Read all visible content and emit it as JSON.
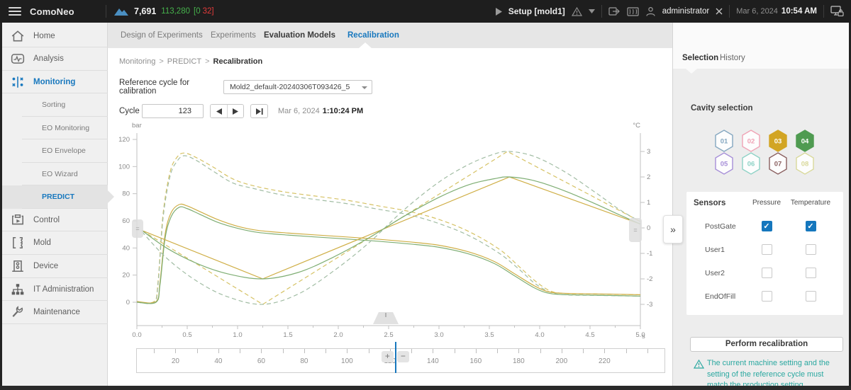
{
  "topbar": {
    "app_name": "ComoNeo",
    "cycle_counter": "7,691",
    "total_counter": "113,280",
    "good_counter": "[0",
    "bad_counter": "32]",
    "mode_label": "Setup [mold1]",
    "user": "administrator",
    "date": "Mar 6, 2024",
    "time": "10:54 AM"
  },
  "sidebar": {
    "items": [
      {
        "id": "home",
        "label": "Home",
        "icon": "home-icon"
      },
      {
        "id": "analysis",
        "label": "Analysis",
        "icon": "analysis-icon"
      },
      {
        "id": "monitoring",
        "label": "Monitoring",
        "icon": "monitoring-icon",
        "active": true
      },
      {
        "id": "sorting",
        "label": "Sorting",
        "sub": true
      },
      {
        "id": "eo-monitoring",
        "label": "EO Monitoring",
        "sub": true
      },
      {
        "id": "eo-envelope",
        "label": "EO Envelope",
        "sub": true
      },
      {
        "id": "eo-wizard",
        "label": "EO Wizard",
        "sub": true
      },
      {
        "id": "predict",
        "label": "PREDICT",
        "sub": true,
        "selected": true
      },
      {
        "id": "control",
        "label": "Control",
        "icon": "control-icon"
      },
      {
        "id": "mold",
        "label": "Mold",
        "icon": "mold-icon"
      },
      {
        "id": "device",
        "label": "Device",
        "icon": "device-icon"
      },
      {
        "id": "it-administration",
        "label": "IT Administration",
        "icon": "it-admin-icon"
      },
      {
        "id": "maintenance",
        "label": "Maintenance",
        "icon": "maintenance-icon"
      }
    ]
  },
  "tabs": {
    "items": [
      {
        "label": "Design of Experiments"
      },
      {
        "label": "Experiments"
      },
      {
        "label": "Evaluation Models",
        "emphasis": true
      },
      {
        "label": "Recalibration",
        "active": true
      }
    ]
  },
  "main": {
    "breadcrumb": [
      "Monitoring",
      "PREDICT",
      "Recalibration"
    ],
    "breadcrumb_sep": ">",
    "reference_label": "Reference cycle for calibration",
    "reference_value": "Mold2_default-20240306T093426_5",
    "cycle_label": "Cycle",
    "cycle_value": "123",
    "cycle_date": "Mar 6, 2024",
    "cycle_time": "1:10:24 PM"
  },
  "chart_data": {
    "type": "line",
    "grid": false,
    "legend": false,
    "x_axis": {
      "label": "s",
      "min": 0,
      "max": 5,
      "major_tick": 0.5,
      "minor_tick": 0.25
    },
    "y_axis_left": {
      "label": "bar",
      "min": 0,
      "max": 120,
      "major_tick": 20
    },
    "y_axis_right": {
      "label": "°C",
      "min": -3,
      "max": 3,
      "major_tick": 1
    },
    "series": [
      {
        "name": "pressure-reference-cavity03",
        "axis": "left",
        "color": "#d6c264",
        "dashed": true,
        "smooth": true,
        "points": [
          [
            0,
            0.5
          ],
          [
            0.17,
            0.5
          ],
          [
            0.21,
            15
          ],
          [
            0.26,
            65
          ],
          [
            0.33,
            96
          ],
          [
            0.4,
            107
          ],
          [
            0.47,
            110
          ],
          [
            0.58,
            107
          ],
          [
            0.75,
            100
          ],
          [
            0.95,
            91
          ],
          [
            1.15,
            86
          ],
          [
            1.45,
            81.5
          ],
          [
            1.8,
            78
          ],
          [
            2.1,
            75
          ],
          [
            2.4,
            71
          ],
          [
            2.7,
            67
          ],
          [
            3.0,
            61
          ],
          [
            3.3,
            52
          ],
          [
            3.6,
            39
          ],
          [
            3.8,
            26
          ],
          [
            3.95,
            16
          ],
          [
            4.1,
            8.5
          ],
          [
            4.25,
            6.5
          ],
          [
            4.6,
            6
          ],
          [
            5,
            5.5
          ]
        ]
      },
      {
        "name": "pressure-reference-cavity04",
        "axis": "left",
        "color": "#a2bda4",
        "dashed": true,
        "smooth": true,
        "points": [
          [
            0,
            0
          ],
          [
            0.17,
            0
          ],
          [
            0.21,
            13
          ],
          [
            0.26,
            62
          ],
          [
            0.33,
            93
          ],
          [
            0.4,
            104
          ],
          [
            0.47,
            108
          ],
          [
            0.58,
            105
          ],
          [
            0.75,
            97
          ],
          [
            0.95,
            88
          ],
          [
            1.15,
            84
          ],
          [
            1.45,
            79
          ],
          [
            1.8,
            75.5
          ],
          [
            2.1,
            72.5
          ],
          [
            2.4,
            68.5
          ],
          [
            2.7,
            64.5
          ],
          [
            3.0,
            58
          ],
          [
            3.3,
            49
          ],
          [
            3.6,
            36
          ],
          [
            3.8,
            24
          ],
          [
            3.95,
            14
          ],
          [
            4.1,
            7.5
          ],
          [
            4.25,
            5.5
          ],
          [
            4.6,
            5
          ],
          [
            5,
            4.5
          ]
        ]
      },
      {
        "name": "pressure-current-cavity03",
        "axis": "left",
        "color": "#cfae45",
        "dashed": false,
        "smooth": true,
        "points": [
          [
            0,
            0.5
          ],
          [
            0.19,
            0.5
          ],
          [
            0.23,
            15
          ],
          [
            0.28,
            50
          ],
          [
            0.34,
            66
          ],
          [
            0.42,
            72
          ],
          [
            0.5,
            71
          ],
          [
            0.62,
            67
          ],
          [
            0.8,
            61
          ],
          [
            1.0,
            56
          ],
          [
            1.2,
            53
          ],
          [
            1.5,
            51
          ],
          [
            1.9,
            49
          ],
          [
            2.3,
            47
          ],
          [
            2.7,
            44.5
          ],
          [
            3.0,
            42
          ],
          [
            3.3,
            37
          ],
          [
            3.55,
            30
          ],
          [
            3.75,
            21
          ],
          [
            3.95,
            12
          ],
          [
            4.1,
            7.5
          ],
          [
            4.3,
            6.5
          ],
          [
            4.7,
            6
          ],
          [
            5,
            5.5
          ]
        ]
      },
      {
        "name": "pressure-current-cavity04",
        "axis": "left",
        "color": "#7fae74",
        "dashed": false,
        "smooth": true,
        "points": [
          [
            0,
            0
          ],
          [
            0.19,
            0
          ],
          [
            0.23,
            13
          ],
          [
            0.28,
            47
          ],
          [
            0.34,
            63
          ],
          [
            0.42,
            70
          ],
          [
            0.5,
            69
          ],
          [
            0.62,
            65
          ],
          [
            0.8,
            59
          ],
          [
            1.0,
            54.5
          ],
          [
            1.2,
            51.5
          ],
          [
            1.5,
            49.5
          ],
          [
            1.9,
            47.5
          ],
          [
            2.3,
            45.5
          ],
          [
            2.7,
            43
          ],
          [
            3.0,
            40.5
          ],
          [
            3.3,
            35.5
          ],
          [
            3.55,
            28.5
          ],
          [
            3.75,
            19.5
          ],
          [
            3.95,
            10.5
          ],
          [
            4.1,
            6.5
          ],
          [
            4.3,
            5.5
          ],
          [
            4.7,
            5
          ],
          [
            5,
            4.5
          ]
        ]
      },
      {
        "name": "temperature-reference-cavity03",
        "axis": "right",
        "color": "#d6c264",
        "dashed": true,
        "smooth": false,
        "points": [
          [
            0.05,
            -0.1
          ],
          [
            1.25,
            -3
          ],
          [
            3.68,
            3
          ],
          [
            5,
            0.25
          ]
        ]
      },
      {
        "name": "temperature-reference-cavity04",
        "axis": "right",
        "color": "#a2bda4",
        "dashed": true,
        "smooth": true,
        "points": [
          [
            0.05,
            -0.15
          ],
          [
            0.3,
            -1.2
          ],
          [
            0.6,
            -2.1
          ],
          [
            0.9,
            -2.7
          ],
          [
            1.25,
            -3
          ],
          [
            1.6,
            -2.6
          ],
          [
            1.95,
            -1.7
          ],
          [
            2.3,
            -0.6
          ],
          [
            2.65,
            0.7
          ],
          [
            3.0,
            1.8
          ],
          [
            3.3,
            2.5
          ],
          [
            3.55,
            2.9
          ],
          [
            3.7,
            3
          ],
          [
            3.95,
            2.8
          ],
          [
            4.25,
            2.2
          ],
          [
            4.55,
            1.4
          ],
          [
            4.8,
            0.7
          ],
          [
            5,
            0.25
          ]
        ]
      },
      {
        "name": "temperature-current-cavity03",
        "axis": "right",
        "color": "#cfae45",
        "dashed": false,
        "smooth": false,
        "points": [
          [
            0.05,
            -0.1
          ],
          [
            1.25,
            -2
          ],
          [
            3.7,
            2
          ],
          [
            5,
            0.15
          ]
        ]
      },
      {
        "name": "temperature-current-cavity04",
        "axis": "right",
        "color": "#7fae74",
        "dashed": false,
        "smooth": true,
        "points": [
          [
            0.05,
            -0.1
          ],
          [
            0.3,
            -0.8
          ],
          [
            0.6,
            -1.4
          ],
          [
            0.9,
            -1.8
          ],
          [
            1.25,
            -2
          ],
          [
            1.6,
            -1.75
          ],
          [
            1.95,
            -1.15
          ],
          [
            2.3,
            -0.4
          ],
          [
            2.65,
            0.45
          ],
          [
            3.0,
            1.2
          ],
          [
            3.3,
            1.7
          ],
          [
            3.55,
            1.93
          ],
          [
            3.7,
            2
          ],
          [
            3.95,
            1.85
          ],
          [
            4.25,
            1.45
          ],
          [
            4.55,
            0.95
          ],
          [
            4.8,
            0.5
          ],
          [
            5,
            0.15
          ]
        ]
      }
    ]
  },
  "scrubber": {
    "value_min": 2,
    "value_max": 248,
    "tick_step": 10,
    "label_step": 20,
    "first_label": 20,
    "last_label": 220,
    "cursor_value": 123,
    "plus_label": "+",
    "minus_label": "−"
  },
  "panel": {
    "tabs": [
      {
        "label": "Selection",
        "active": true
      },
      {
        "label": "History"
      }
    ],
    "cavity_title": "Cavity selection",
    "cavities": [
      {
        "label": "01",
        "color": "#84a7c0",
        "filled": false
      },
      {
        "label": "02",
        "color": "#f0a3b5",
        "filled": false
      },
      {
        "label": "03",
        "color": "#d2a524",
        "filled": true
      },
      {
        "label": "04",
        "color": "#4f9b51",
        "filled": true
      },
      {
        "label": "05",
        "color": "#a78fd8",
        "filled": false
      },
      {
        "label": "06",
        "color": "#8ed2c6",
        "filled": false
      },
      {
        "label": "07",
        "color": "#8a5f5f",
        "filled": false
      },
      {
        "label": "08",
        "color": "#d9d99b",
        "filled": false
      }
    ],
    "sensors": {
      "title": "Sensors",
      "columns": [
        "Pressure",
        "Temperature"
      ],
      "rows": [
        {
          "name": "PostGate",
          "pressure": true,
          "temperature": true
        },
        {
          "name": "User1",
          "pressure": false,
          "temperature": false
        },
        {
          "name": "User2",
          "pressure": false,
          "temperature": false
        },
        {
          "name": "EndOfFill",
          "pressure": false,
          "temperature": false
        }
      ]
    },
    "button_label": "Perform recalibration",
    "warning_text": "The current machine setting and the setting  of the reference cycle must match the production setting",
    "expand_glyph": "»"
  },
  "colors": {
    "accent_blue": "#1878be",
    "good_green": "#46b24c",
    "alarm_red": "#e23b3b",
    "warning_teal": "#2aa8a0",
    "checkbox_blue": "#1577bd"
  }
}
